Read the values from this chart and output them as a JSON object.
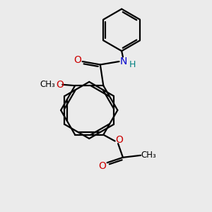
{
  "bg_color": "#ebebeb",
  "bond_color": "#000000",
  "oxygen_color": "#cc0000",
  "nitrogen_color": "#0000cc",
  "h_color": "#008080",
  "lw": 1.6,
  "fig_size": [
    3.0,
    3.0
  ],
  "dpi": 100,
  "xlim": [
    0,
    10
  ],
  "ylim": [
    0,
    10
  ]
}
